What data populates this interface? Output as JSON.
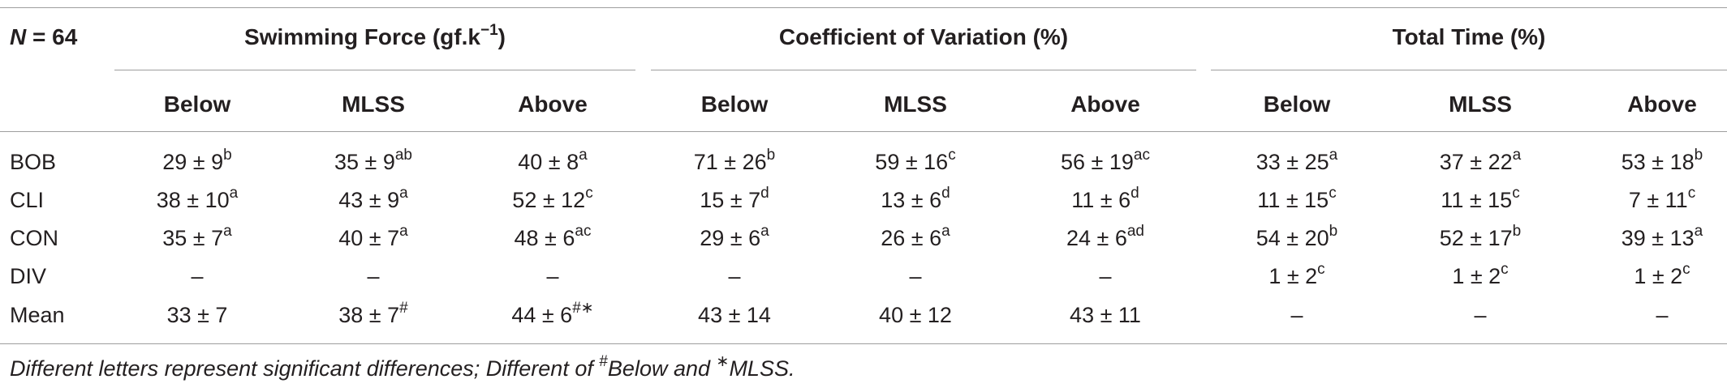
{
  "table": {
    "n_label": "N = 64",
    "groups": [
      {
        "title": "Swimming Force (gf.k",
        "title_sup": "−1",
        "title_close": ")"
      },
      {
        "title": "Coefficient of Variation (%)"
      },
      {
        "title": "Total Time (%)"
      }
    ],
    "subheaders": [
      "Below",
      "MLSS",
      "Above",
      "Below",
      "MLSS",
      "Above",
      "Below",
      "MLSS",
      "Above"
    ],
    "rows": [
      {
        "label": "BOB",
        "cells": [
          {
            "v": "29 ± 9",
            "s": "b"
          },
          {
            "v": "35 ± 9",
            "s": "ab"
          },
          {
            "v": "40 ± 8",
            "s": "a"
          },
          {
            "v": "71 ± 26",
            "s": "b"
          },
          {
            "v": "59 ± 16",
            "s": "c"
          },
          {
            "v": "56 ± 19",
            "s": "ac"
          },
          {
            "v": "33 ± 25",
            "s": "a"
          },
          {
            "v": "37 ± 22",
            "s": "a"
          },
          {
            "v": "53 ± 18",
            "s": "b"
          }
        ]
      },
      {
        "label": "CLI",
        "cells": [
          {
            "v": "38 ± 10",
            "s": "a"
          },
          {
            "v": "43 ± 9",
            "s": "a"
          },
          {
            "v": "52 ± 12",
            "s": "c"
          },
          {
            "v": "15 ± 7",
            "s": "d"
          },
          {
            "v": "13 ± 6",
            "s": "d"
          },
          {
            "v": "11 ± 6",
            "s": "d"
          },
          {
            "v": "11 ± 15",
            "s": "c"
          },
          {
            "v": "11 ± 15",
            "s": "c"
          },
          {
            "v": "7 ± 11",
            "s": "c"
          }
        ]
      },
      {
        "label": "CON",
        "cells": [
          {
            "v": "35 ± 7",
            "s": "a"
          },
          {
            "v": "40 ± 7",
            "s": "a"
          },
          {
            "v": "48 ± 6",
            "s": "ac"
          },
          {
            "v": "29 ± 6",
            "s": "a"
          },
          {
            "v": "26 ± 6",
            "s": "a"
          },
          {
            "v": "24 ± 6",
            "s": "ad"
          },
          {
            "v": "54 ± 20",
            "s": "b"
          },
          {
            "v": "52 ± 17",
            "s": "b"
          },
          {
            "v": "39 ± 13",
            "s": "a"
          }
        ]
      },
      {
        "label": "DIV",
        "cells": [
          {
            "v": "–",
            "s": ""
          },
          {
            "v": "–",
            "s": ""
          },
          {
            "v": "–",
            "s": ""
          },
          {
            "v": "–",
            "s": ""
          },
          {
            "v": "–",
            "s": ""
          },
          {
            "v": "–",
            "s": ""
          },
          {
            "v": "1 ± 2",
            "s": "c"
          },
          {
            "v": "1 ± 2",
            "s": "c"
          },
          {
            "v": "1 ± 2",
            "s": "c"
          }
        ]
      },
      {
        "label": "Mean",
        "cells": [
          {
            "v": "33 ± 7",
            "s": ""
          },
          {
            "v": "38 ± 7",
            "s": "#"
          },
          {
            "v": "44 ± 6",
            "s": "#∗"
          },
          {
            "v": "43 ± 14",
            "s": ""
          },
          {
            "v": "40 ± 12",
            "s": ""
          },
          {
            "v": "43 ± 11",
            "s": ""
          },
          {
            "v": "–",
            "s": ""
          },
          {
            "v": "–",
            "s": ""
          },
          {
            "v": "–",
            "s": ""
          }
        ]
      }
    ],
    "footnote": {
      "part1": "Different letters represent significant differences; Different of ",
      "sup1": "#",
      "part2": "Below and ",
      "sup2": "∗",
      "part3": "MLSS."
    }
  }
}
